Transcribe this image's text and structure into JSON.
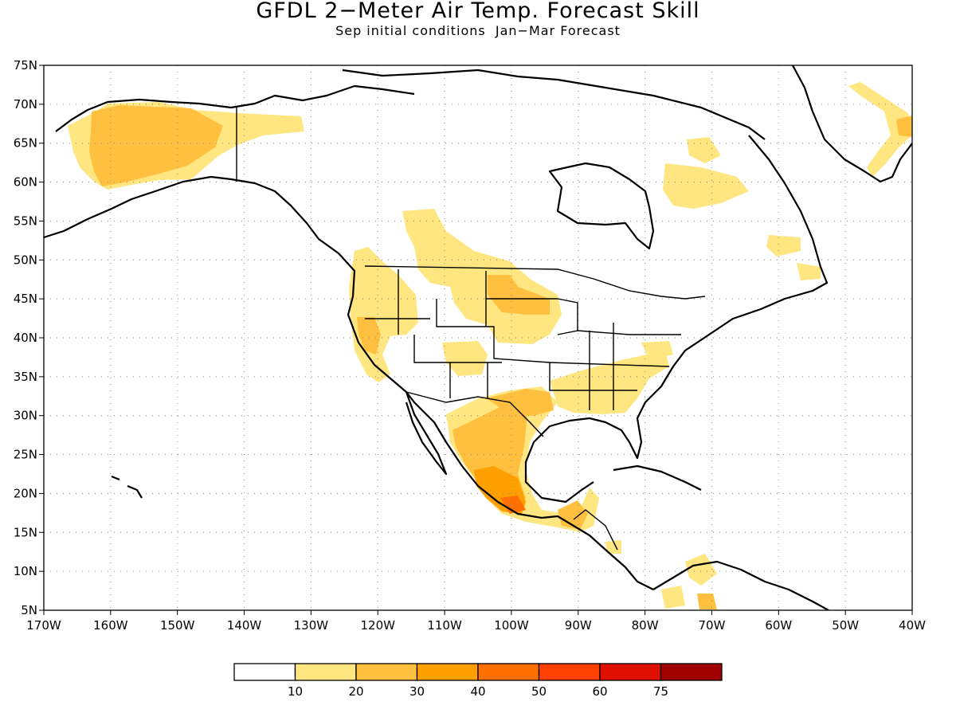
{
  "title": "GFDL 2−Meter Air Temp. Forecast Skill",
  "subtitle": "Sep initial conditions  Jan−Mar Forecast",
  "map": {
    "lat_labels": [
      "75N",
      "70N",
      "65N",
      "60N",
      "55N",
      "50N",
      "45N",
      "40N",
      "35N",
      "30N",
      "25N",
      "20N",
      "15N",
      "10N",
      "5N"
    ],
    "lon_labels": [
      "170W",
      "160W",
      "150W",
      "140W",
      "130W",
      "120W",
      "110W",
      "100W",
      "90W",
      "80W",
      "70W",
      "60W",
      "50W",
      "40W"
    ],
    "lat_range": [
      5,
      75
    ],
    "lon_range": [
      -170,
      -40
    ],
    "gridlines": "dotted"
  },
  "legend": {
    "labels": [
      "10",
      "20",
      "30",
      "40",
      "50",
      "60",
      "75"
    ],
    "colors": [
      "#ffffff",
      "#ffe680",
      "#ffc040",
      "#ffa000",
      "#ff7000",
      "#ff4000",
      "#e01000",
      "#a00000"
    ]
  }
}
